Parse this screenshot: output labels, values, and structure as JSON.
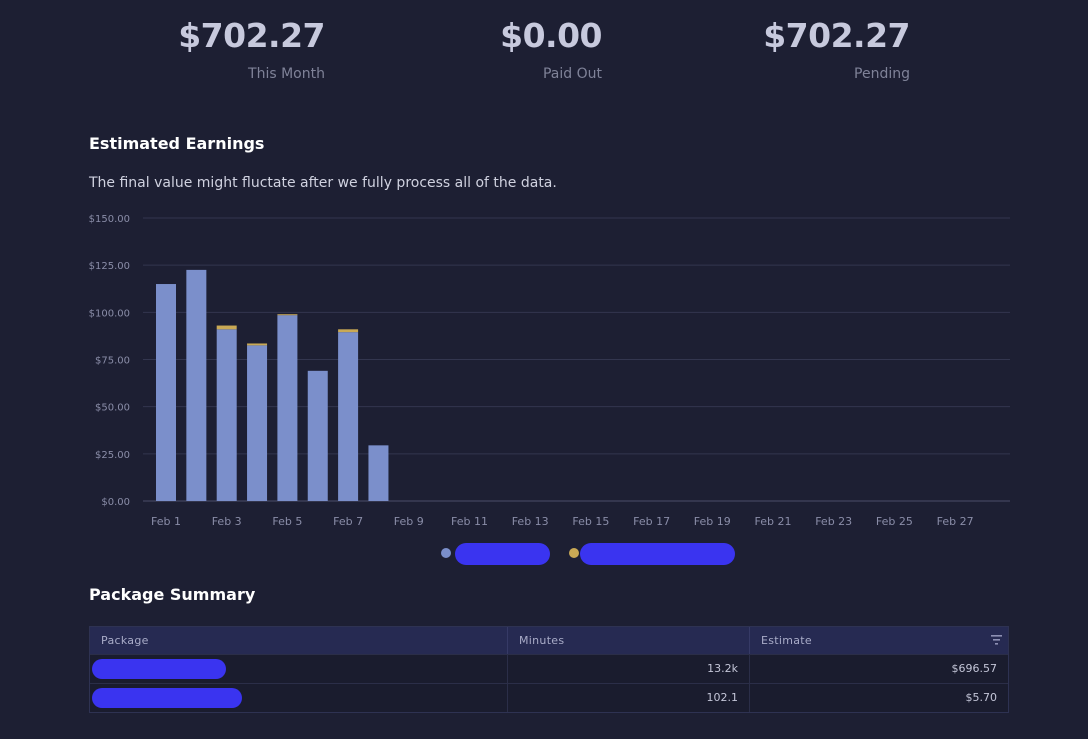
{
  "stats": [
    {
      "value": "$702.27",
      "label": "This Month"
    },
    {
      "value": "$0.00",
      "label": "Paid Out"
    },
    {
      "value": "$702.27",
      "label": "Pending"
    }
  ],
  "earnings": {
    "title": "Estimated Earnings",
    "subtitle": "The final value might fluctate after we fully process all of the data."
  },
  "chart_data": {
    "type": "bar",
    "stacked": true,
    "categories": [
      "Feb 1",
      "Feb 2",
      "Feb 3",
      "Feb 4",
      "Feb 5",
      "Feb 6",
      "Feb 7",
      "Feb 8",
      "Feb 9",
      "Feb 10",
      "Feb 11",
      "Feb 12",
      "Feb 13",
      "Feb 14",
      "Feb 15",
      "Feb 16",
      "Feb 17",
      "Feb 18",
      "Feb 19",
      "Feb 20",
      "Feb 21",
      "Feb 22",
      "Feb 23",
      "Feb 24",
      "Feb 25",
      "Feb 26",
      "Feb 27",
      "Feb 28"
    ],
    "x_tick_labels": [
      "Feb 1",
      "Feb 3",
      "Feb 5",
      "Feb 7",
      "Feb 9",
      "Feb 11",
      "Feb 13",
      "Feb 15",
      "Feb 17",
      "Feb 19",
      "Feb 21",
      "Feb 23",
      "Feb 25",
      "Feb 27"
    ],
    "series": [
      {
        "color": "#7b8fcb",
        "values": [
          115,
          122.5,
          91,
          82.5,
          98.5,
          69,
          89.5,
          29.5,
          0,
          0,
          0,
          0,
          0,
          0,
          0,
          0,
          0,
          0,
          0,
          0,
          0,
          0,
          0,
          0,
          0,
          0,
          0,
          0
        ]
      },
      {
        "color": "#c9a955",
        "values": [
          0,
          0,
          2,
          1,
          0.5,
          0,
          1.5,
          0,
          0,
          0,
          0,
          0,
          0,
          0,
          0,
          0,
          0,
          0,
          0,
          0,
          0,
          0,
          0,
          0,
          0,
          0,
          0,
          0
        ]
      }
    ],
    "y_tick_labels": [
      "$0.00",
      "$25.00",
      "$50.00",
      "$75.00",
      "$100.00",
      "$125.00",
      "$150.00"
    ],
    "ylim": [
      0,
      150
    ],
    "grid": true,
    "legend_position": "bottom-center"
  },
  "legend": {
    "colors": [
      "#7b8fcb",
      "#c9a955"
    ]
  },
  "summary": {
    "title": "Package Summary",
    "columns": [
      "Package",
      "Minutes",
      "Estimate"
    ],
    "rows": [
      {
        "minutes": "13.2k",
        "estimate": "$696.57"
      },
      {
        "minutes": "102.1",
        "estimate": "$5.70"
      }
    ],
    "filter_icon": "filter-icon"
  }
}
